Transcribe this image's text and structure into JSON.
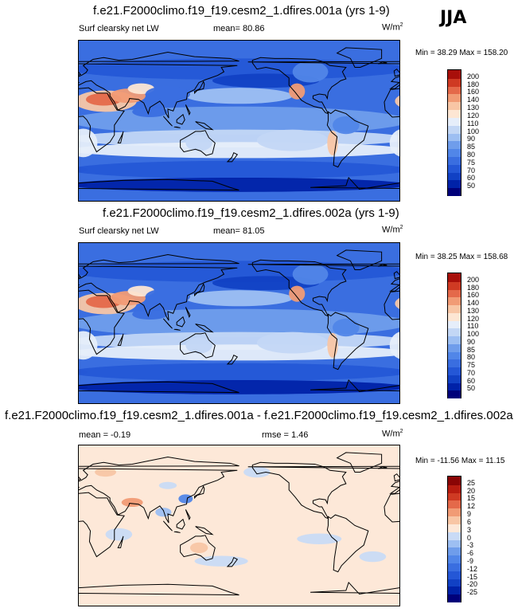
{
  "season": "JJA",
  "panels": [
    {
      "title": "f.e21.F2000climo.f19_f19.cesm2_1.dfires.001a (yrs 1-9)",
      "variable": "Surf clearsky net LW",
      "stat1": "mean=  80.86",
      "stat2": "",
      "units_base": "W/m",
      "units_exp": "2",
      "minmax": "Min =  38.29 Max = 158.20",
      "kind": "abs",
      "levels": [
        "50",
        "60",
        "70",
        "75",
        "80",
        "85",
        "90",
        "100",
        "110",
        "120",
        "130",
        "140",
        "160",
        "180",
        "200"
      ]
    },
    {
      "title": "f.e21.F2000climo.f19_f19.cesm2_1.dfires.002a (yrs 1-9)",
      "variable": "Surf clearsky net LW",
      "stat1": "mean=  81.05",
      "stat2": "",
      "units_base": "W/m",
      "units_exp": "2",
      "minmax": "Min =  38.25 Max = 158.68",
      "kind": "abs",
      "levels": [
        "50",
        "60",
        "70",
        "75",
        "80",
        "85",
        "90",
        "100",
        "110",
        "120",
        "130",
        "140",
        "160",
        "180",
        "200"
      ]
    },
    {
      "title": "f.e21.F2000climo.f19_f19.cesm2_1.dfires.001a - f.e21.F2000climo.f19_f19.cesm2_1.dfires.002a",
      "variable": "",
      "stat1": "mean =  -0.19",
      "stat2": "rmse =   1.46",
      "units_base": "W/m",
      "units_exp": "2",
      "minmax": "Min = -11.56 Max =  11.15",
      "kind": "diff",
      "levels": [
        "-25",
        "-20",
        "-15",
        "-12",
        "-9",
        "-6",
        "-3",
        "0",
        "3",
        "6",
        "9",
        "12",
        "15",
        "20",
        "25"
      ]
    }
  ],
  "colors": {
    "abs": [
      "#00007a",
      "#0022a8",
      "#1141c4",
      "#2457d6",
      "#3a6ee0",
      "#5186e8",
      "#6f9deb",
      "#9dbff2",
      "#c3d7f5",
      "#e6eefa",
      "#fde6d3",
      "#f8c6a5",
      "#f19b75",
      "#e4694a",
      "#cf3a23",
      "#a80f0a"
    ],
    "diff": [
      "#00007a",
      "#0022a8",
      "#1141c4",
      "#2457d6",
      "#3a6ee0",
      "#5186e8",
      "#6f9deb",
      "#9dbff2",
      "#c9dbf6",
      "#fde8d8",
      "#f8c6a5",
      "#f19b75",
      "#e4694a",
      "#cf3a23",
      "#b81c10",
      "#8a0505"
    ]
  },
  "chart_data": [
    {
      "type": "heatmap",
      "title": "f.e21.F2000climo.f19_f19.cesm2_1.dfires.001a (yrs 1-9)",
      "subtitle": "Surf clearsky net LW",
      "mean": 80.86,
      "min": 38.29,
      "max": 158.2,
      "units": "W/m2",
      "contour_levels": [
        50,
        60,
        70,
        75,
        80,
        85,
        90,
        100,
        110,
        120,
        130,
        140,
        160,
        180,
        200
      ],
      "projection": "global lat-lon, centered 180"
    },
    {
      "type": "heatmap",
      "title": "f.e21.F2000climo.f19_f19.cesm2_1.dfires.002a (yrs 1-9)",
      "subtitle": "Surf clearsky net LW",
      "mean": 81.05,
      "min": 38.25,
      "max": 158.68,
      "units": "W/m2",
      "contour_levels": [
        50,
        60,
        70,
        75,
        80,
        85,
        90,
        100,
        110,
        120,
        130,
        140,
        160,
        180,
        200
      ],
      "projection": "global lat-lon, centered 180"
    },
    {
      "type": "heatmap",
      "title": "f.e21.F2000climo.f19_f19.cesm2_1.dfires.001a - f.e21.F2000climo.f19_f19.cesm2_1.dfires.002a",
      "mean": -0.19,
      "rmse": 1.46,
      "min": -11.56,
      "max": 11.15,
      "units": "W/m2",
      "contour_levels": [
        -25,
        -20,
        -15,
        -12,
        -9,
        -6,
        -3,
        0,
        3,
        6,
        9,
        12,
        15,
        20,
        25
      ],
      "projection": "global lat-lon, centered 180"
    }
  ]
}
